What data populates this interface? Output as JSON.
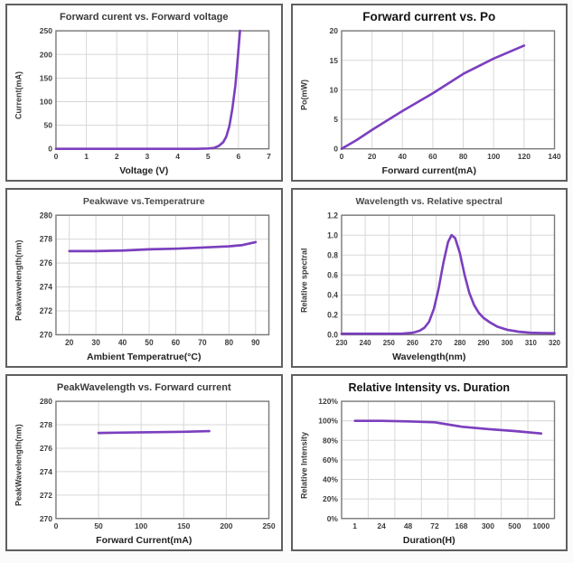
{
  "style": {
    "curve_color": "#7b3fbe",
    "grid_color": "#d8d8d8",
    "frame_color": "#7a7a7a",
    "panel_border_color": "#5f5f5f",
    "tick_label_color": "#3d3d3d"
  },
  "chart_data": [
    {
      "id": "forward-current-vs-forward-voltage",
      "type": "line",
      "title": "Forward curent vs. Forward voltage",
      "xlabel": "Voltage (V)",
      "ylabel": "Current(mA)",
      "x": {
        "type": "numeric",
        "min": 0,
        "max": 7,
        "ticks": [
          0,
          1,
          2,
          3,
          4,
          5,
          6,
          7
        ]
      },
      "y": {
        "min": 0,
        "max": 250,
        "ticks": [
          0,
          50,
          100,
          150,
          200,
          250
        ]
      },
      "points": [
        [
          0,
          0
        ],
        [
          4.6,
          0
        ],
        [
          5.0,
          0.5
        ],
        [
          5.2,
          2
        ],
        [
          5.35,
          6
        ],
        [
          5.5,
          14
        ],
        [
          5.6,
          26
        ],
        [
          5.7,
          48
        ],
        [
          5.8,
          85
        ],
        [
          5.9,
          135
        ],
        [
          5.98,
          195
        ],
        [
          6.05,
          250
        ]
      ]
    },
    {
      "id": "forward-current-vs-po",
      "type": "line",
      "title": "Forward current vs. Po",
      "xlabel": "Forward current(mA)",
      "ylabel": "Po(mW)",
      "x": {
        "type": "numeric",
        "min": 0,
        "max": 140,
        "ticks": [
          0,
          20,
          40,
          60,
          80,
          100,
          120,
          140
        ]
      },
      "y": {
        "min": 0,
        "max": 20,
        "ticks": [
          0,
          5,
          10,
          15,
          20
        ]
      },
      "points": [
        [
          0,
          0
        ],
        [
          10,
          1.5
        ],
        [
          20,
          3.2
        ],
        [
          40,
          6.4
        ],
        [
          60,
          9.4
        ],
        [
          80,
          12.7
        ],
        [
          100,
          15.3
        ],
        [
          120,
          17.5
        ]
      ]
    },
    {
      "id": "peakwave-vs-temperature",
      "type": "line",
      "title": "Peakwave vs.Temperatrure",
      "xlabel": "Ambient Temperatrue(°C)",
      "ylabel": "Peakwavelength(nm)",
      "x": {
        "type": "numeric",
        "min": 15,
        "max": 95,
        "ticks": [
          20,
          30,
          40,
          50,
          60,
          70,
          80,
          90
        ]
      },
      "y": {
        "min": 270,
        "max": 280,
        "ticks": [
          270,
          272,
          274,
          276,
          278,
          280
        ]
      },
      "points": [
        [
          20,
          277.0
        ],
        [
          30,
          277.0
        ],
        [
          40,
          277.05
        ],
        [
          50,
          277.15
        ],
        [
          60,
          277.2
        ],
        [
          70,
          277.3
        ],
        [
          80,
          277.4
        ],
        [
          85,
          277.5
        ],
        [
          90,
          277.75
        ]
      ]
    },
    {
      "id": "wavelength-vs-relative-spectral",
      "type": "line",
      "title": "Wavelength vs. Relative spectral",
      "xlabel": "Wavelength(nm)",
      "ylabel": "Relative spectral",
      "x": {
        "type": "numeric",
        "min": 230,
        "max": 320,
        "ticks": [
          230,
          240,
          250,
          260,
          270,
          280,
          290,
          300,
          310,
          320
        ]
      },
      "y": {
        "min": 0,
        "max": 1.2,
        "ticks": [
          0,
          0.2,
          0.4,
          0.6,
          0.8,
          1.0,
          1.2
        ],
        "tick_labels": [
          "0.0",
          "0.2",
          "0.4",
          "0.6",
          "0.8",
          "1.0",
          "1.2"
        ]
      },
      "points": [
        [
          230,
          0.01
        ],
        [
          255,
          0.01
        ],
        [
          260,
          0.02
        ],
        [
          263,
          0.04
        ],
        [
          265,
          0.07
        ],
        [
          267,
          0.13
        ],
        [
          269,
          0.26
        ],
        [
          271,
          0.46
        ],
        [
          273,
          0.72
        ],
        [
          275,
          0.93
        ],
        [
          276.5,
          1.0
        ],
        [
          278,
          0.97
        ],
        [
          280,
          0.82
        ],
        [
          282,
          0.6
        ],
        [
          284,
          0.42
        ],
        [
          286,
          0.3
        ],
        [
          288,
          0.22
        ],
        [
          290,
          0.17
        ],
        [
          293,
          0.12
        ],
        [
          296,
          0.08
        ],
        [
          300,
          0.05
        ],
        [
          305,
          0.03
        ],
        [
          310,
          0.02
        ],
        [
          315,
          0.017
        ],
        [
          320,
          0.015
        ]
      ]
    },
    {
      "id": "peakwavelength-vs-forward-current",
      "type": "line",
      "title": "PeakWavelength vs. Forward current",
      "xlabel": "Forward Current(mA)",
      "ylabel": "PeakWavelength(nm)",
      "x": {
        "type": "numeric",
        "min": 0,
        "max": 250,
        "ticks": [
          0,
          50,
          100,
          150,
          200,
          250
        ]
      },
      "y": {
        "min": 270,
        "max": 280,
        "ticks": [
          270,
          272,
          274,
          276,
          278,
          280
        ]
      },
      "points": [
        [
          50,
          277.3
        ],
        [
          100,
          277.35
        ],
        [
          150,
          277.4
        ],
        [
          180,
          277.45
        ]
      ]
    },
    {
      "id": "relative-intensity-vs-duration",
      "type": "line",
      "title": "Relative Intensity vs. Duration",
      "xlabel": "Duration(H)",
      "ylabel": "Relative Intensity",
      "x": {
        "type": "category",
        "categories": [
          "1",
          "24",
          "48",
          "72",
          "168",
          "300",
          "500",
          "1000"
        ]
      },
      "y": {
        "min": 0,
        "max": 120,
        "ticks": [
          0,
          20,
          40,
          60,
          80,
          100,
          120
        ],
        "tick_labels": [
          "0%",
          "20%",
          "40%",
          "60%",
          "80%",
          "100%",
          "120%"
        ]
      },
      "values": [
        100,
        100,
        99.5,
        98.5,
        94,
        91.5,
        89.5,
        87
      ]
    }
  ]
}
